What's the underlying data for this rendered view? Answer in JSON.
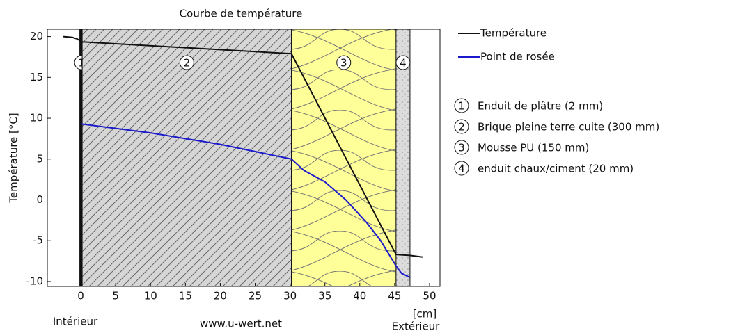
{
  "chart_data": {
    "type": "line",
    "title": "Courbe de température",
    "ylabel": "Température [°C]",
    "xlabel": "[cm]",
    "left_label": "Intérieur",
    "right_label": "Extérieur",
    "source": "www.u-wert.net",
    "xlim": [
      -4.8,
      51.5
    ],
    "ylim": [
      -10.6,
      20.9
    ],
    "xticks": [
      0,
      5,
      10,
      15,
      20,
      25,
      30,
      35,
      40,
      45,
      50
    ],
    "yticks": [
      -10,
      -5,
      0,
      5,
      10,
      15,
      20
    ],
    "layers": [
      {
        "number": "1",
        "name": "Enduit de plâtre (2 mm)",
        "x": [
          0,
          0.2
        ]
      },
      {
        "number": "2",
        "name": "Brique pleine terre cuite (300 mm)",
        "x": [
          0.2,
          30.2
        ]
      },
      {
        "number": "3",
        "name": "Mousse PU (150 mm)",
        "x": [
          30.2,
          45.2
        ]
      },
      {
        "number": "4",
        "name": "enduit chaux/ciment (20 mm)",
        "x": [
          45.2,
          47.2
        ]
      }
    ],
    "series": [
      {
        "name": "Température",
        "color": "#111111",
        "x": [
          -2.5,
          -1.2,
          -0.5,
          0,
          0.2,
          30.2,
          45.2,
          47.2,
          49
        ],
        "values": [
          20,
          19.9,
          19.7,
          19.4,
          19.35,
          17.9,
          -6.7,
          -6.8,
          -7.0
        ]
      },
      {
        "name": "Point de rosée",
        "color": "#1a1acc",
        "x": [
          0,
          10,
          20,
          30.2,
          32,
          35,
          38,
          41,
          43,
          45.2,
          46,
          47.2
        ],
        "values": [
          9.3,
          8.2,
          6.8,
          5.0,
          3.6,
          2.2,
          0,
          -2.8,
          -5,
          -8.1,
          -9,
          -9.5
        ]
      }
    ]
  }
}
